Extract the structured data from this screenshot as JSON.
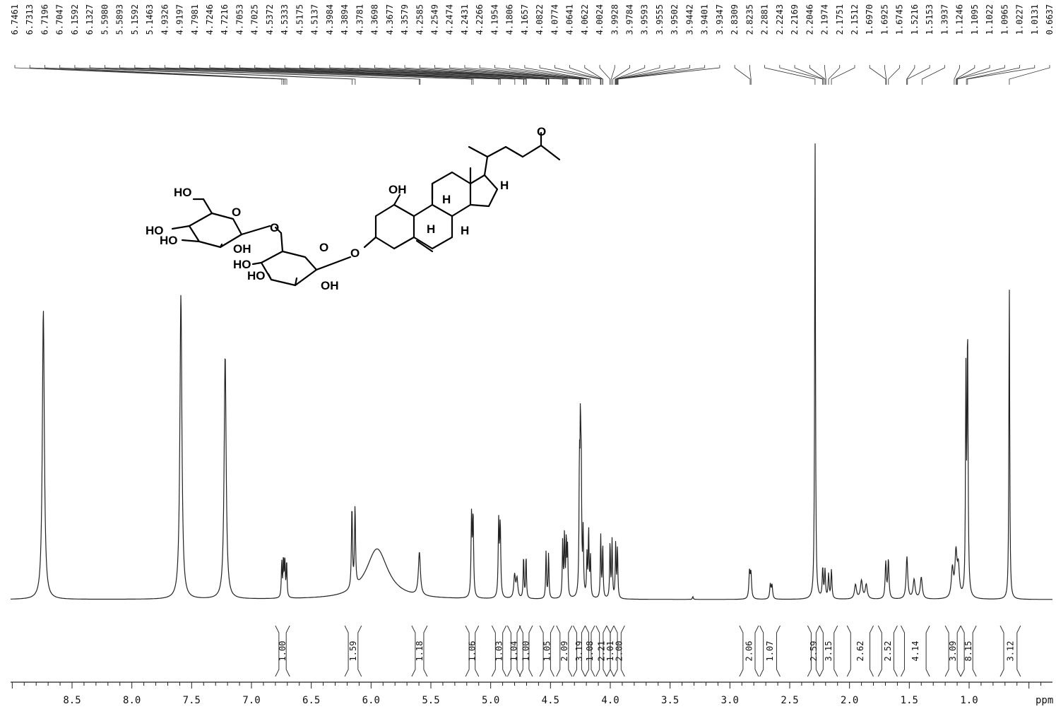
{
  "chart_data": {
    "type": "line",
    "title": "",
    "xlabel": "ppm",
    "ylabel": "",
    "x_reversed": true,
    "xlim": [
      9.0,
      0.0
    ],
    "x_ticks": [
      8.5,
      8.0,
      7.5,
      7.0,
      6.5,
      6.0,
      5.5,
      5.0,
      4.5,
      4.0,
      3.5,
      3.0,
      2.5,
      2.0,
      1.5,
      1.0
    ],
    "x_tick_labels": [
      "8.5",
      "8.0",
      "7.5",
      "7.0",
      "6.5",
      "6.0",
      "5.5",
      "5.0",
      "4.5",
      "4.0",
      "3.5",
      "3.0",
      "2.5",
      "2.0",
      "1.5",
      "1.0"
    ],
    "grid": false,
    "legend": "none",
    "peak_labels": [
      "6.7461",
      "6.7313",
      "6.7196",
      "6.7047",
      "6.1592",
      "6.1327",
      "5.5980",
      "5.5893",
      "5.1592",
      "5.1463",
      "4.9326",
      "4.9197",
      "4.7981",
      "4.7246",
      "4.7216",
      "4.7053",
      "4.7025",
      "4.5372",
      "4.5333",
      "4.5175",
      "4.5137",
      "4.3984",
      "4.3894",
      "4.3781",
      "4.3698",
      "4.3677",
      "4.3579",
      "4.2585",
      "4.2549",
      "4.2474",
      "4.2431",
      "4.2266",
      "4.1954",
      "4.1806",
      "4.1657",
      "4.0822",
      "4.0774",
      "4.0641",
      "4.0622",
      "4.0024",
      "3.9928",
      "3.9784",
      "3.9593",
      "3.9555",
      "3.9502",
      "3.9442",
      "3.9401",
      "3.9347",
      "2.8309",
      "2.8235",
      "2.2881",
      "2.2243",
      "2.2169",
      "2.2046",
      "2.1974",
      "2.1751",
      "2.1512",
      "1.6970",
      "1.6925",
      "1.6745",
      "1.5216",
      "1.5153",
      "1.3937",
      "1.1246",
      "1.1095",
      "1.1022",
      "1.0965",
      "1.0227",
      "1.0131",
      "0.6637"
    ],
    "peaks": [
      {
        "x": 8.74,
        "h": 0.605,
        "w": 0.01
      },
      {
        "x": 7.59,
        "h": 0.635,
        "w": 0.01
      },
      {
        "x": 7.22,
        "h": 0.51,
        "w": 0.01
      },
      {
        "x": 6.747,
        "h": 0.075,
        "w": 0.004
      },
      {
        "x": 6.733,
        "h": 0.078,
        "w": 0.004
      },
      {
        "x": 6.721,
        "h": 0.078,
        "w": 0.004
      },
      {
        "x": 6.706,
        "h": 0.075,
        "w": 0.004
      },
      {
        "x": 6.16,
        "h": 0.168,
        "w": 0.005
      },
      {
        "x": 6.134,
        "h": 0.165,
        "w": 0.005
      },
      {
        "x": 5.95,
        "h": 0.105,
        "w": 0.11
      },
      {
        "x": 5.596,
        "h": 0.09,
        "w": 0.01
      },
      {
        "x": 5.16,
        "h": 0.168,
        "w": 0.005
      },
      {
        "x": 5.147,
        "h": 0.165,
        "w": 0.005
      },
      {
        "x": 4.933,
        "h": 0.155,
        "w": 0.005
      },
      {
        "x": 4.92,
        "h": 0.15,
        "w": 0.005
      },
      {
        "x": 4.8,
        "h": 0.048,
        "w": 0.008
      },
      {
        "x": 4.78,
        "h": 0.04,
        "w": 0.008
      },
      {
        "x": 4.725,
        "h": 0.088,
        "w": 0.004
      },
      {
        "x": 4.704,
        "h": 0.088,
        "w": 0.004
      },
      {
        "x": 4.537,
        "h": 0.098,
        "w": 0.004
      },
      {
        "x": 4.516,
        "h": 0.095,
        "w": 0.004
      },
      {
        "x": 4.398,
        "h": 0.118,
        "w": 0.004
      },
      {
        "x": 4.383,
        "h": 0.13,
        "w": 0.004
      },
      {
        "x": 4.368,
        "h": 0.12,
        "w": 0.004
      },
      {
        "x": 4.357,
        "h": 0.1,
        "w": 0.004
      },
      {
        "x": 4.258,
        "h": 0.25,
        "w": 0.004
      },
      {
        "x": 4.25,
        "h": 0.31,
        "w": 0.004
      },
      {
        "x": 4.243,
        "h": 0.245,
        "w": 0.004
      },
      {
        "x": 4.227,
        "h": 0.13,
        "w": 0.004
      },
      {
        "x": 4.195,
        "h": 0.085,
        "w": 0.004
      },
      {
        "x": 4.181,
        "h": 0.14,
        "w": 0.004
      },
      {
        "x": 4.166,
        "h": 0.085,
        "w": 0.004
      },
      {
        "x": 4.08,
        "h": 0.13,
        "w": 0.004
      },
      {
        "x": 4.063,
        "h": 0.11,
        "w": 0.004
      },
      {
        "x": 4.002,
        "h": 0.115,
        "w": 0.004
      },
      {
        "x": 3.985,
        "h": 0.12,
        "w": 0.004
      },
      {
        "x": 3.955,
        "h": 0.115,
        "w": 0.004
      },
      {
        "x": 3.94,
        "h": 0.105,
        "w": 0.004
      },
      {
        "x": 3.31,
        "h": 0.006,
        "w": 0.004
      },
      {
        "x": 2.836,
        "h": 0.055,
        "w": 0.006
      },
      {
        "x": 2.824,
        "h": 0.05,
        "w": 0.006
      },
      {
        "x": 2.662,
        "h": 0.03,
        "w": 0.006
      },
      {
        "x": 2.648,
        "h": 0.028,
        "w": 0.006
      },
      {
        "x": 2.288,
        "h": 0.97,
        "w": 0.004
      },
      {
        "x": 2.224,
        "h": 0.062,
        "w": 0.005
      },
      {
        "x": 2.205,
        "h": 0.058,
        "w": 0.005
      },
      {
        "x": 2.175,
        "h": 0.05,
        "w": 0.005
      },
      {
        "x": 2.151,
        "h": 0.06,
        "w": 0.005
      },
      {
        "x": 1.95,
        "h": 0.03,
        "w": 0.01
      },
      {
        "x": 1.9,
        "h": 0.038,
        "w": 0.01
      },
      {
        "x": 1.86,
        "h": 0.03,
        "w": 0.01
      },
      {
        "x": 1.697,
        "h": 0.075,
        "w": 0.006
      },
      {
        "x": 1.675,
        "h": 0.08,
        "w": 0.006
      },
      {
        "x": 1.52,
        "h": 0.088,
        "w": 0.008
      },
      {
        "x": 1.46,
        "h": 0.04,
        "w": 0.01
      },
      {
        "x": 1.4,
        "h": 0.045,
        "w": 0.01
      },
      {
        "x": 1.14,
        "h": 0.06,
        "w": 0.01
      },
      {
        "x": 1.11,
        "h": 0.09,
        "w": 0.01
      },
      {
        "x": 1.09,
        "h": 0.06,
        "w": 0.01
      },
      {
        "x": 1.027,
        "h": 0.44,
        "w": 0.004
      },
      {
        "x": 1.013,
        "h": 0.54,
        "w": 0.005
      },
      {
        "x": 0.664,
        "h": 0.66,
        "w": 0.004
      }
    ],
    "integrals": [
      {
        "value": "1.00",
        "from": 6.8,
        "to": 6.68
      },
      {
        "value": "1.59",
        "from": 6.22,
        "to": 6.08
      },
      {
        "value": "1.18",
        "from": 5.66,
        "to": 5.53
      },
      {
        "value": "1.06",
        "from": 5.21,
        "to": 5.1
      },
      {
        "value": "1.03",
        "from": 4.99,
        "to": 4.87
      },
      {
        "value": "1.04",
        "from": 4.86,
        "to": 4.75
      },
      {
        "value": "1.00",
        "from": 4.76,
        "to": 4.65
      },
      {
        "value": "1.05",
        "from": 4.59,
        "to": 4.47
      },
      {
        "value": "2.09",
        "from": 4.45,
        "to": 4.32
      },
      {
        "value": "3.19",
        "from": 4.31,
        "to": 4.21
      },
      {
        "value": "1.08",
        "from": 4.21,
        "to": 4.13
      },
      {
        "value": "2.21",
        "from": 4.12,
        "to": 4.03
      },
      {
        "value": "1.01",
        "from": 4.03,
        "to": 3.97
      },
      {
        "value": "2.00",
        "from": 3.97,
        "to": 3.88
      },
      {
        "value": "2.06",
        "from": 2.92,
        "to": 2.76
      },
      {
        "value": "1.07",
        "from": 2.75,
        "to": 2.58
      },
      {
        "value": "2.59",
        "from": 2.35,
        "to": 2.25
      },
      {
        "value": "3.15",
        "from": 2.25,
        "to": 2.1
      },
      {
        "value": "2.62",
        "from": 2.02,
        "to": 1.8
      },
      {
        "value": "2.52",
        "from": 1.76,
        "to": 1.6
      },
      {
        "value": "4.14",
        "from": 1.57,
        "to": 1.33
      },
      {
        "value": "3.09",
        "from": 1.2,
        "to": 1.07
      },
      {
        "value": "8.15",
        "from": 1.07,
        "to": 0.94
      },
      {
        "value": "3.12",
        "from": 0.74,
        "to": 0.57
      }
    ]
  },
  "structure": {
    "labels": [
      "O",
      "OH",
      "H",
      "H",
      "H",
      "H",
      "HO",
      "O",
      "HO",
      "HO",
      "OH",
      "O",
      "HO",
      "HO",
      "OH",
      "O",
      "O"
    ]
  }
}
